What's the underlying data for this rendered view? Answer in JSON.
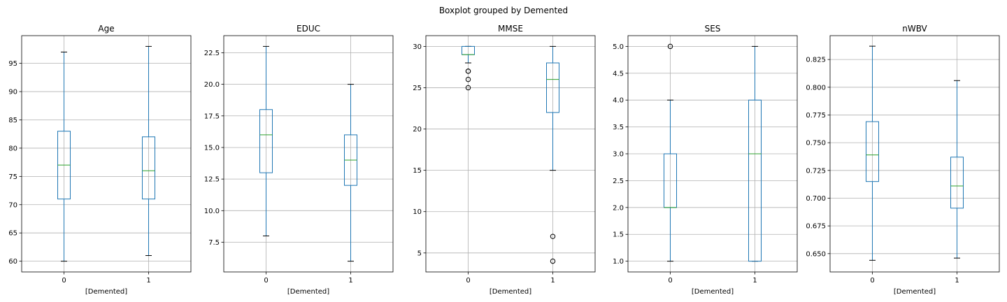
{
  "figure": {
    "suptitle": "Boxplot grouped by Demented"
  },
  "colors": {
    "box": "#1f77b4",
    "median": "#2ca02c",
    "whisker": "#1f77b4",
    "cap": "#000000",
    "grid": "#b0b0b0",
    "outlier_edge": "#000000"
  },
  "chart_data": [
    {
      "type": "box",
      "title": "Age",
      "xlabel": "[Demented]",
      "ylabel": "",
      "categories": [
        "0",
        "1"
      ],
      "ylim": [
        58.1,
        99.9
      ],
      "yticks": [
        60,
        65,
        70,
        75,
        80,
        85,
        90,
        95
      ],
      "yticklabels": [
        "60",
        "65",
        "70",
        "75",
        "80",
        "85",
        "90",
        "95"
      ],
      "grid": true,
      "boxes": [
        {
          "category": "0",
          "whisker_low": 60,
          "q1": 71,
          "median": 77,
          "q3": 83,
          "whisker_high": 97,
          "outliers": []
        },
        {
          "category": "1",
          "whisker_low": 61,
          "q1": 71,
          "median": 76,
          "q3": 82,
          "whisker_high": 98,
          "outliers": []
        }
      ]
    },
    {
      "type": "box",
      "title": "EDUC",
      "xlabel": "[Demented]",
      "ylabel": "",
      "categories": [
        "0",
        "1"
      ],
      "ylim": [
        5.15,
        23.85
      ],
      "yticks": [
        7.5,
        10.0,
        12.5,
        15.0,
        17.5,
        20.0,
        22.5
      ],
      "yticklabels": [
        "7.5",
        "10.0",
        "12.5",
        "15.0",
        "17.5",
        "20.0",
        "22.5"
      ],
      "grid": true,
      "boxes": [
        {
          "category": "0",
          "whisker_low": 8,
          "q1": 13,
          "median": 16,
          "q3": 18,
          "whisker_high": 23,
          "outliers": []
        },
        {
          "category": "1",
          "whisker_low": 6,
          "q1": 12,
          "median": 14,
          "q3": 16,
          "whisker_high": 20,
          "outliers": []
        }
      ]
    },
    {
      "type": "box",
      "title": "MMSE",
      "xlabel": "[Demented]",
      "ylabel": "",
      "categories": [
        "0",
        "1"
      ],
      "ylim": [
        2.7,
        31.3
      ],
      "yticks": [
        5,
        10,
        15,
        20,
        25,
        30
      ],
      "yticklabels": [
        "5",
        "10",
        "15",
        "20",
        "25",
        "30"
      ],
      "grid": true,
      "boxes": [
        {
          "category": "0",
          "whisker_low": 28,
          "q1": 29,
          "median": 29,
          "q3": 30,
          "whisker_high": 30,
          "outliers": [
            27,
            27,
            26,
            25
          ]
        },
        {
          "category": "1",
          "whisker_low": 15,
          "q1": 22,
          "median": 26,
          "q3": 28,
          "whisker_high": 30,
          "outliers": [
            7,
            4
          ]
        }
      ]
    },
    {
      "type": "box",
      "title": "SES",
      "xlabel": "[Demented]",
      "ylabel": "",
      "categories": [
        "0",
        "1"
      ],
      "ylim": [
        0.8,
        5.2
      ],
      "yticks": [
        1.0,
        1.5,
        2.0,
        2.5,
        3.0,
        3.5,
        4.0,
        4.5,
        5.0
      ],
      "yticklabels": [
        "1.0",
        "1.5",
        "2.0",
        "2.5",
        "3.0",
        "3.5",
        "4.0",
        "4.5",
        "5.0"
      ],
      "grid": true,
      "boxes": [
        {
          "category": "0",
          "whisker_low": 1,
          "q1": 2,
          "median": 2,
          "q3": 3,
          "whisker_high": 4,
          "outliers": [
            5
          ]
        },
        {
          "category": "1",
          "whisker_low": 1,
          "q1": 1,
          "median": 3,
          "q3": 4,
          "whisker_high": 5,
          "outliers": []
        }
      ]
    },
    {
      "type": "box",
      "title": "nWBV",
      "xlabel": "[Demented]",
      "ylabel": "",
      "categories": [
        "0",
        "1"
      ],
      "ylim": [
        0.6335,
        0.8465
      ],
      "yticks": [
        0.65,
        0.675,
        0.7,
        0.725,
        0.75,
        0.775,
        0.8,
        0.825
      ],
      "yticklabels": [
        "0.650",
        "0.675",
        "0.700",
        "0.725",
        "0.750",
        "0.775",
        "0.800",
        "0.825"
      ],
      "grid": true,
      "boxes": [
        {
          "category": "0",
          "whisker_low": 0.644,
          "q1": 0.715,
          "median": 0.739,
          "q3": 0.769,
          "whisker_high": 0.837,
          "outliers": []
        },
        {
          "category": "1",
          "whisker_low": 0.646,
          "q1": 0.691,
          "median": 0.711,
          "q3": 0.737,
          "whisker_high": 0.806,
          "outliers": []
        }
      ]
    }
  ]
}
